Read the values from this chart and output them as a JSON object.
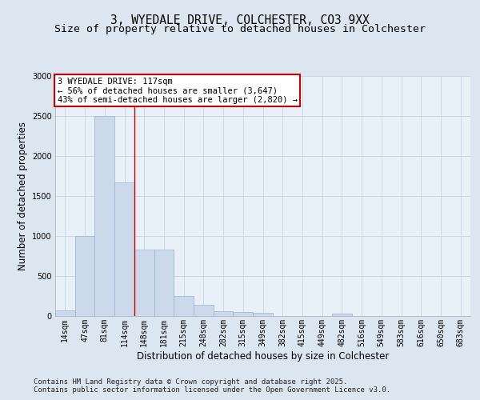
{
  "title_line1": "3, WYEDALE DRIVE, COLCHESTER, CO3 9XX",
  "title_line2": "Size of property relative to detached houses in Colchester",
  "xlabel": "Distribution of detached houses by size in Colchester",
  "ylabel": "Number of detached properties",
  "footer_line1": "Contains HM Land Registry data © Crown copyright and database right 2025.",
  "footer_line2": "Contains public sector information licensed under the Open Government Licence v3.0.",
  "annotation_line1": "3 WYEDALE DRIVE: 117sqm",
  "annotation_line2": "← 56% of detached houses are smaller (3,647)",
  "annotation_line3": "43% of semi-detached houses are larger (2,820) →",
  "bar_labels": [
    "14sqm",
    "47sqm",
    "81sqm",
    "114sqm",
    "148sqm",
    "181sqm",
    "215sqm",
    "248sqm",
    "282sqm",
    "315sqm",
    "349sqm",
    "382sqm",
    "415sqm",
    "449sqm",
    "482sqm",
    "516sqm",
    "549sqm",
    "583sqm",
    "616sqm",
    "650sqm",
    "683sqm"
  ],
  "bar_values": [
    75,
    1000,
    2500,
    1670,
    830,
    830,
    255,
    140,
    65,
    50,
    40,
    0,
    0,
    0,
    30,
    0,
    0,
    0,
    0,
    0,
    0
  ],
  "bar_color": "#ccd9ea",
  "bar_edge_color": "#99b3cc",
  "red_line_index": 3,
  "ylim": [
    0,
    3000
  ],
  "yticks": [
    0,
    500,
    1000,
    1500,
    2000,
    2500,
    3000
  ],
  "background_color": "#dce6f0",
  "plot_bg_color": "#e8f0f8",
  "annotation_box_facecolor": "#ffffff",
  "annotation_box_edgecolor": "#cc0000",
  "red_line_color": "#cc0000",
  "grid_color": "#c8d4e4",
  "title_fontsize": 10.5,
  "subtitle_fontsize": 9.5,
  "ylabel_fontsize": 8.5,
  "xlabel_fontsize": 8.5,
  "tick_fontsize": 7,
  "annotation_fontsize": 7.5,
  "footer_fontsize": 6.5
}
